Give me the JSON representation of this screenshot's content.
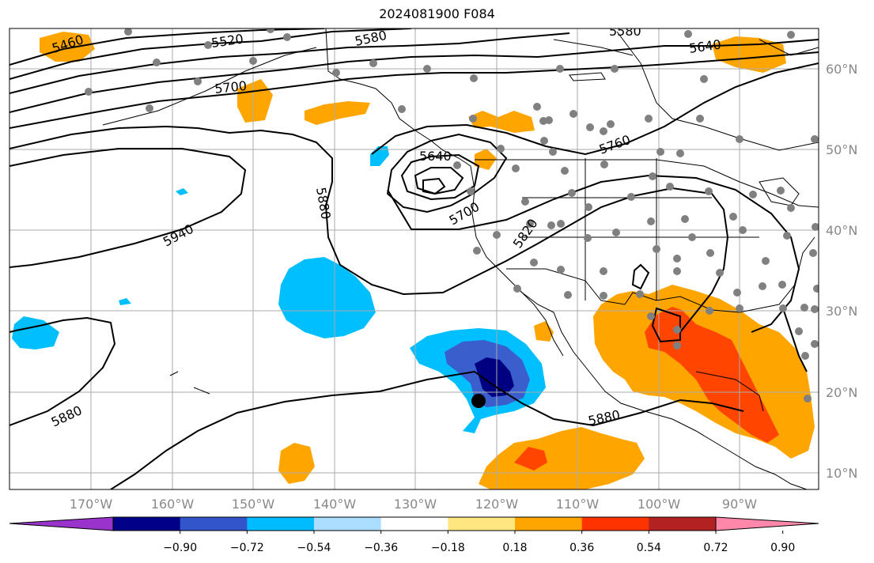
{
  "title": "2024081900 F084",
  "contour_labels": [
    "5460",
    "5520",
    "5580",
    "5580",
    "5640",
    "5700",
    "5640",
    "5700",
    "5760",
    "5820",
    "5880",
    "5940",
    "5880",
    "5880"
  ],
  "longitude_labels": [
    "170°W",
    "160°W",
    "150°W",
    "140°W",
    "130°W",
    "120°W",
    "110°W",
    "100°W",
    "90°W"
  ],
  "latitude_labels": [
    "60°N",
    "50°N",
    "40°N",
    "30°N",
    "20°N",
    "10°N"
  ],
  "colorbar": {
    "tick_labels": [
      "−0.90",
      "−0.72",
      "−0.54",
      "−0.36",
      "−0.18",
      "0.18",
      "0.36",
      "0.54",
      "0.72",
      "0.90"
    ],
    "colors": [
      "#9933cc",
      "#000088",
      "#3355cc",
      "#00bbff",
      "#aaddff",
      "#ffffff",
      "#ffe680",
      "#ffa500",
      "#ff3300",
      "#b22222",
      "#ff88aa"
    ]
  },
  "colors": {
    "orange": "#ffa500",
    "red_orange": "#ff4500",
    "light_blue": "#00bfff",
    "medium_blue": "#3a5fcd",
    "dark_blue": "#000080",
    "station_marker": "#808080",
    "grid": "#aaaaaa"
  }
}
